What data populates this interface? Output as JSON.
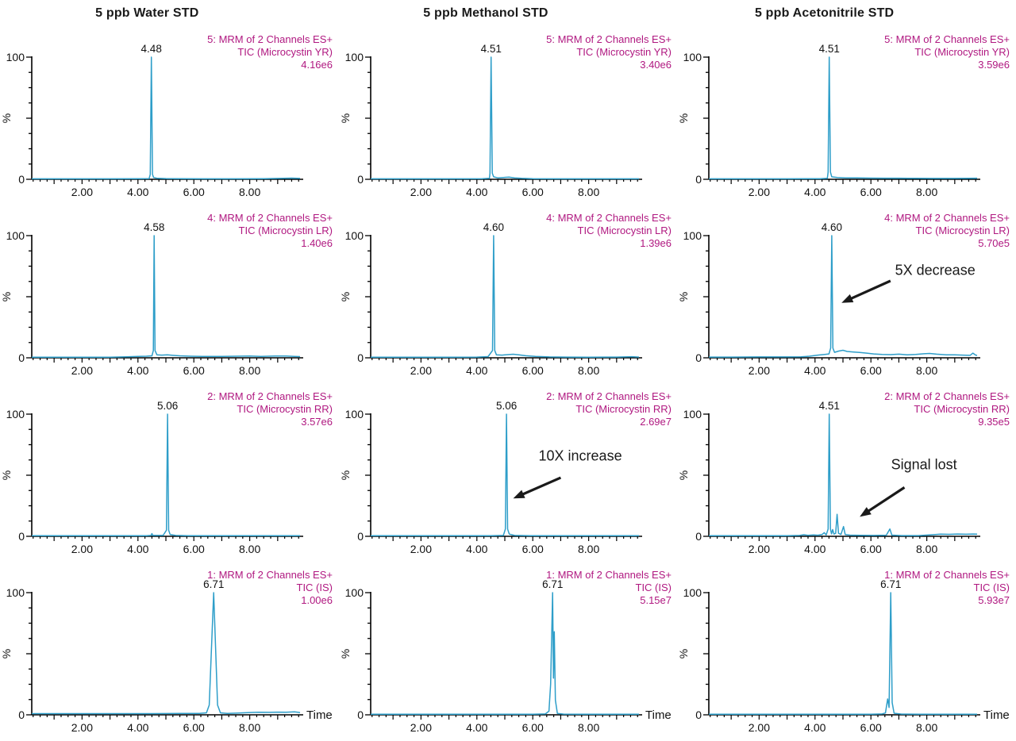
{
  "colors": {
    "trace": "#2E9EC9",
    "channel_label": "#B01880",
    "axis": "#000000",
    "text": "#111111",
    "annotation": "#1a1a1a"
  },
  "chart_data": {
    "type": "line",
    "column_titles": [
      "5 ppb Water STD",
      "5 ppb Methanol STD",
      "5 ppb Acetonitrile STD"
    ],
    "axis": {
      "x_range": [
        0.2,
        9.8
      ],
      "x_minor_step": 0.25,
      "x_labeled_ticks": [
        {
          "t": 2,
          "label": "2.00"
        },
        {
          "t": 4,
          "label": "4.00"
        },
        {
          "t": 6,
          "label": "6.00"
        },
        {
          "t": 8,
          "label": "8.00"
        }
      ],
      "y_range": [
        0,
        100
      ],
      "y_minor_step": 12.5,
      "y_top_label": "100",
      "y_bottom_label": "0",
      "y_axis_title": "%",
      "time_label": "Time"
    },
    "rows": [
      {
        "channel": "5: MRM of 2 Channels ES+",
        "tic": "TIC (Microcystin YR)"
      },
      {
        "channel": "4: MRM of 2 Channels ES+",
        "tic": "TIC (Microcystin LR)"
      },
      {
        "channel": "2: MRM of 2 Channels ES+",
        "tic": "TIC (Microcystin RR)"
      },
      {
        "channel": "1: MRM of 2 Channels ES+",
        "tic": "TIC (IS)"
      }
    ],
    "panels": [
      {
        "row": 0,
        "col": 0,
        "intensity": "4.16e6",
        "rt_label": "4.48",
        "rt": 4.48,
        "show_time": false,
        "annotation": null,
        "trace": [
          [
            0.2,
            0.4
          ],
          [
            1.5,
            0.4
          ],
          [
            3,
            0.4
          ],
          [
            4.1,
            0.5
          ],
          [
            4.4,
            0.6
          ],
          [
            4.44,
            4
          ],
          [
            4.48,
            100
          ],
          [
            4.52,
            4
          ],
          [
            4.56,
            1.5
          ],
          [
            4.7,
            0.8
          ],
          [
            5,
            0.6
          ],
          [
            5.5,
            0.5
          ],
          [
            6.5,
            0.4
          ],
          [
            7.5,
            0.4
          ],
          [
            8.5,
            0.5
          ],
          [
            9.2,
            0.8
          ],
          [
            9.5,
            1
          ],
          [
            9.8,
            0.7
          ]
        ]
      },
      {
        "row": 0,
        "col": 1,
        "intensity": "3.40e6",
        "rt_label": "4.51",
        "rt": 4.51,
        "show_time": false,
        "annotation": null,
        "trace": [
          [
            0.2,
            0.4
          ],
          [
            1.5,
            0.4
          ],
          [
            3,
            0.4
          ],
          [
            4.2,
            0.5
          ],
          [
            4.45,
            0.8
          ],
          [
            4.47,
            5
          ],
          [
            4.51,
            100
          ],
          [
            4.55,
            5
          ],
          [
            4.6,
            2
          ],
          [
            4.75,
            1.2
          ],
          [
            4.95,
            1.5
          ],
          [
            5.15,
            1.8
          ],
          [
            5.35,
            1.2
          ],
          [
            5.6,
            0.8
          ],
          [
            6,
            0.5
          ],
          [
            7,
            0.4
          ],
          [
            8,
            0.4
          ],
          [
            9.8,
            0.4
          ]
        ]
      },
      {
        "row": 0,
        "col": 2,
        "intensity": "3.59e6",
        "rt_label": "4.51",
        "rt": 4.51,
        "show_time": false,
        "annotation": null,
        "trace": [
          [
            0.2,
            0.4
          ],
          [
            1.5,
            0.4
          ],
          [
            3,
            0.4
          ],
          [
            4.2,
            0.5
          ],
          [
            4.44,
            0.8
          ],
          [
            4.47,
            6
          ],
          [
            4.51,
            100
          ],
          [
            4.55,
            6
          ],
          [
            4.6,
            2
          ],
          [
            4.8,
            1.5
          ],
          [
            5.1,
            1.2
          ],
          [
            5.5,
            1.1
          ],
          [
            6,
            1
          ],
          [
            6.5,
            0.9
          ],
          [
            7,
            0.9
          ],
          [
            7.6,
            0.8
          ],
          [
            8.2,
            0.7
          ],
          [
            9,
            0.7
          ],
          [
            9.5,
            0.8
          ],
          [
            9.8,
            0.9
          ]
        ]
      },
      {
        "row": 1,
        "col": 0,
        "intensity": "1.40e6",
        "rt_label": "4.58",
        "rt": 4.58,
        "show_time": false,
        "annotation": null,
        "trace": [
          [
            0.2,
            0.5
          ],
          [
            1.5,
            0.5
          ],
          [
            3,
            0.5
          ],
          [
            3.6,
            0.8
          ],
          [
            4,
            1.1
          ],
          [
            4.3,
            1.3
          ],
          [
            4.5,
            1.6
          ],
          [
            4.55,
            6
          ],
          [
            4.58,
            100
          ],
          [
            4.61,
            6
          ],
          [
            4.68,
            2.5
          ],
          [
            4.85,
            2.2
          ],
          [
            5.05,
            2.4
          ],
          [
            5.25,
            2
          ],
          [
            5.5,
            1.6
          ],
          [
            5.9,
            1.3
          ],
          [
            6.4,
            1.1
          ],
          [
            7,
            1.1
          ],
          [
            7.5,
            1.3
          ],
          [
            8,
            1.4
          ],
          [
            8.4,
            1.2
          ],
          [
            8.9,
            1.5
          ],
          [
            9.3,
            1.4
          ],
          [
            9.6,
            1.2
          ],
          [
            9.8,
            1
          ]
        ]
      },
      {
        "row": 1,
        "col": 1,
        "intensity": "1.39e6",
        "rt_label": "4.60",
        "rt": 4.6,
        "show_time": false,
        "annotation": null,
        "trace": [
          [
            0.2,
            0.5
          ],
          [
            1.5,
            0.5
          ],
          [
            3,
            0.5
          ],
          [
            4,
            0.6
          ],
          [
            4.4,
            1
          ],
          [
            4.56,
            6
          ],
          [
            4.6,
            100
          ],
          [
            4.64,
            6
          ],
          [
            4.7,
            2.5
          ],
          [
            4.9,
            2.2
          ],
          [
            5.1,
            2.6
          ],
          [
            5.3,
            2.9
          ],
          [
            5.5,
            2.4
          ],
          [
            5.75,
            1.7
          ],
          [
            6.1,
            1.1
          ],
          [
            6.6,
            0.7
          ],
          [
            7.2,
            0.6
          ],
          [
            8,
            0.5
          ],
          [
            9,
            0.6
          ],
          [
            9.55,
            0.9
          ],
          [
            9.8,
            0.6
          ]
        ]
      },
      {
        "row": 1,
        "col": 2,
        "intensity": "5.70e5",
        "rt_label": "4.60",
        "rt": 4.6,
        "show_time": false,
        "annotation": {
          "text": "5X decrease",
          "tx": 8.3,
          "ty": 68,
          "arrow": [
            6.7,
            63,
            4.95,
            45
          ]
        },
        "trace": [
          [
            0.2,
            0.6
          ],
          [
            1,
            0.6
          ],
          [
            2,
            0.7
          ],
          [
            3,
            0.7
          ],
          [
            3.5,
            0.8
          ],
          [
            3.8,
            1.3
          ],
          [
            4.1,
            2.2
          ],
          [
            4.35,
            2.8
          ],
          [
            4.5,
            3.2
          ],
          [
            4.56,
            8
          ],
          [
            4.6,
            100
          ],
          [
            4.64,
            8
          ],
          [
            4.7,
            4.5
          ],
          [
            4.85,
            5.5
          ],
          [
            5,
            6.2
          ],
          [
            5.15,
            5.2
          ],
          [
            5.35,
            4.8
          ],
          [
            5.6,
            4.4
          ],
          [
            5.85,
            3.8
          ],
          [
            6.1,
            3.2
          ],
          [
            6.4,
            2.8
          ],
          [
            6.7,
            2.6
          ],
          [
            7,
            3
          ],
          [
            7.3,
            2.5
          ],
          [
            7.6,
            2.8
          ],
          [
            7.9,
            3.3
          ],
          [
            8.1,
            3.6
          ],
          [
            8.35,
            3
          ],
          [
            8.7,
            2.4
          ],
          [
            9,
            2.5
          ],
          [
            9.3,
            2.2
          ],
          [
            9.55,
            2
          ],
          [
            9.65,
            3.8
          ],
          [
            9.75,
            2.2
          ],
          [
            9.8,
            2
          ]
        ]
      },
      {
        "row": 2,
        "col": 0,
        "intensity": "3.57e6",
        "rt_label": "5.06",
        "rt": 5.06,
        "show_time": false,
        "annotation": null,
        "trace": [
          [
            0.2,
            0.5
          ],
          [
            1.5,
            0.5
          ],
          [
            3,
            0.5
          ],
          [
            4.3,
            0.5
          ],
          [
            4.47,
            0.7
          ],
          [
            4.5,
            2.2
          ],
          [
            4.53,
            0.7
          ],
          [
            4.9,
            0.7
          ],
          [
            5.02,
            5
          ],
          [
            5.06,
            100
          ],
          [
            5.1,
            5
          ],
          [
            5.15,
            1.5
          ],
          [
            5.35,
            0.7
          ],
          [
            5.8,
            0.5
          ],
          [
            6.5,
            0.5
          ],
          [
            7.5,
            0.5
          ],
          [
            8.5,
            0.5
          ],
          [
            9.8,
            0.5
          ]
        ]
      },
      {
        "row": 2,
        "col": 1,
        "intensity": "2.69e7",
        "rt_label": "5.06",
        "rt": 5.06,
        "show_time": false,
        "annotation": {
          "text": "10X increase",
          "tx": 7.7,
          "ty": 62,
          "arrow": [
            7.0,
            48,
            5.3,
            31
          ]
        },
        "trace": [
          [
            0.2,
            0.5
          ],
          [
            1.5,
            0.5
          ],
          [
            3,
            0.5
          ],
          [
            4.5,
            0.5
          ],
          [
            4.95,
            0.7
          ],
          [
            5.02,
            6
          ],
          [
            5.06,
            100
          ],
          [
            5.1,
            6
          ],
          [
            5.16,
            1.8
          ],
          [
            5.35,
            0.7
          ],
          [
            5.9,
            0.5
          ],
          [
            6.8,
            0.5
          ],
          [
            7.8,
            0.5
          ],
          [
            9.8,
            0.5
          ]
        ]
      },
      {
        "row": 2,
        "col": 2,
        "intensity": "9.35e5",
        "rt_label": "4.51",
        "rt": 4.51,
        "show_time": false,
        "annotation": {
          "text": "Signal lost",
          "tx": 7.9,
          "ty": 55,
          "arrow": [
            7.2,
            40,
            5.6,
            16
          ]
        },
        "trace": [
          [
            0.2,
            0.5
          ],
          [
            1.5,
            0.5
          ],
          [
            3,
            0.5
          ],
          [
            3.45,
            0.7
          ],
          [
            3.6,
            1.3
          ],
          [
            3.75,
            0.8
          ],
          [
            3.95,
            1.2
          ],
          [
            4.1,
            0.9
          ],
          [
            4.25,
            1.4
          ],
          [
            4.33,
            3
          ],
          [
            4.4,
            1.2
          ],
          [
            4.47,
            6
          ],
          [
            4.51,
            100
          ],
          [
            4.55,
            6
          ],
          [
            4.59,
            2
          ],
          [
            4.63,
            5.5
          ],
          [
            4.68,
            1.8
          ],
          [
            4.74,
            2.5
          ],
          [
            4.79,
            18
          ],
          [
            4.84,
            2.5
          ],
          [
            4.93,
            1.5
          ],
          [
            5.02,
            8
          ],
          [
            5.08,
            1.5
          ],
          [
            5.25,
            1
          ],
          [
            5.6,
            0.8
          ],
          [
            6.1,
            0.7
          ],
          [
            6.55,
            0.9
          ],
          [
            6.68,
            6
          ],
          [
            6.75,
            1
          ],
          [
            7.1,
            0.6
          ],
          [
            7.7,
            0.6
          ],
          [
            8.2,
            1.3
          ],
          [
            8.5,
            1.8
          ],
          [
            8.8,
            1.6
          ],
          [
            9.1,
            1.9
          ],
          [
            9.4,
            1.7
          ],
          [
            9.65,
            1.9
          ],
          [
            9.8,
            1.8
          ]
        ]
      },
      {
        "row": 3,
        "col": 0,
        "intensity": "1.00e6",
        "rt_label": "6.71",
        "rt": 6.71,
        "show_time": true,
        "annotation": null,
        "trace": [
          [
            0.2,
            1
          ],
          [
            1.5,
            1
          ],
          [
            3,
            1
          ],
          [
            4.5,
            1
          ],
          [
            5.5,
            1.1
          ],
          [
            6.2,
            1.2
          ],
          [
            6.45,
            1.6
          ],
          [
            6.55,
            8
          ],
          [
            6.71,
            100
          ],
          [
            6.85,
            8
          ],
          [
            6.95,
            1.6
          ],
          [
            7.2,
            1.2
          ],
          [
            7.6,
            1.5
          ],
          [
            8,
            1.9
          ],
          [
            8.3,
            2.1
          ],
          [
            8.7,
            2
          ],
          [
            9,
            2.2
          ],
          [
            9.3,
            2.1
          ],
          [
            9.6,
            2.4
          ],
          [
            9.75,
            2
          ],
          [
            9.8,
            1.8
          ]
        ]
      },
      {
        "row": 3,
        "col": 1,
        "intensity": "5.15e7",
        "rt_label": "6.71",
        "rt": 6.71,
        "show_time": true,
        "annotation": null,
        "trace": [
          [
            0.2,
            0.5
          ],
          [
            1.5,
            0.5
          ],
          [
            3,
            0.5
          ],
          [
            4.5,
            0.5
          ],
          [
            6,
            0.5
          ],
          [
            6.45,
            0.7
          ],
          [
            6.58,
            3
          ],
          [
            6.64,
            25
          ],
          [
            6.71,
            100
          ],
          [
            6.74,
            30
          ],
          [
            6.77,
            68
          ],
          [
            6.81,
            12
          ],
          [
            6.88,
            1.2
          ],
          [
            7.1,
            0.6
          ],
          [
            7.8,
            0.5
          ],
          [
            9,
            0.5
          ],
          [
            9.8,
            0.5
          ]
        ]
      },
      {
        "row": 3,
        "col": 2,
        "intensity": "5.93e7",
        "rt_label": "6.71",
        "rt": 6.71,
        "show_time": true,
        "annotation": null,
        "trace": [
          [
            0.2,
            0.5
          ],
          [
            1.5,
            0.5
          ],
          [
            3,
            0.5
          ],
          [
            4.5,
            0.5
          ],
          [
            6,
            0.5
          ],
          [
            6.4,
            0.7
          ],
          [
            6.52,
            1.5
          ],
          [
            6.6,
            13
          ],
          [
            6.65,
            6
          ],
          [
            6.71,
            100
          ],
          [
            6.76,
            10
          ],
          [
            6.83,
            1.3
          ],
          [
            7.1,
            0.6
          ],
          [
            7.8,
            0.5
          ],
          [
            9,
            0.5
          ],
          [
            9.8,
            0.5
          ]
        ]
      }
    ]
  }
}
